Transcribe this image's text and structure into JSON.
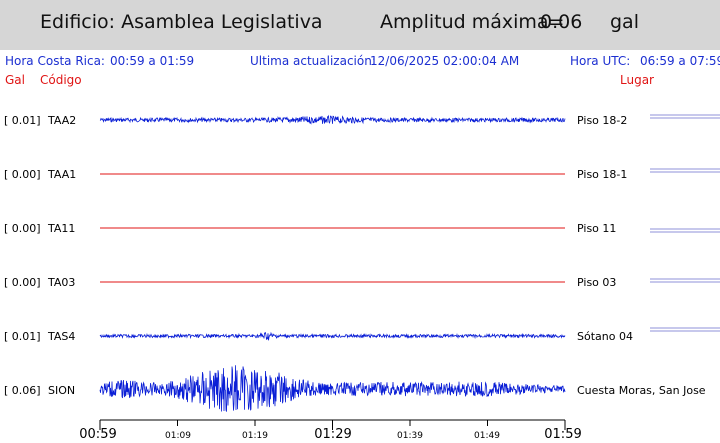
{
  "header": {
    "building": "Edificio: Asamblea Legislativa",
    "amp_label": "Amplitud máxima=",
    "amp_value": "0.06",
    "amp_unit": "gal"
  },
  "info": {
    "local_label": "Hora Costa Rica:",
    "local_range": "00:59 a 01:59",
    "update_label": "Ultima actualización:",
    "update_value": "12/06/2025 02:00:04 AM",
    "utc_label": "Hora UTC:",
    "utc_range": "06:59 a 07:59"
  },
  "columns": {
    "gal": "Gal",
    "code": "Código",
    "place": "Lugar"
  },
  "colors": {
    "header_bg": "#d6d6d6",
    "info_text": "#1c2fd1",
    "label_red": "#e01515",
    "trace_active": "#0b1fd6",
    "trace_flat": "#e01515"
  },
  "channels": [
    {
      "gal": "[   0.01]",
      "code": "TAA2",
      "place": "Piso 18-2",
      "amplitude": 0.01,
      "active": true
    },
    {
      "gal": "[   0.00]",
      "code": "TAA1",
      "place": "Piso 18-1",
      "amplitude": 0.0,
      "active": false
    },
    {
      "gal": "[   0.00]",
      "code": "TA11",
      "place": "Piso 11",
      "amplitude": 0.0,
      "active": false
    },
    {
      "gal": "[   0.00]",
      "code": "TA03",
      "place": "Piso 03",
      "amplitude": 0.0,
      "active": false
    },
    {
      "gal": "[   0.01]",
      "code": "TAS4",
      "place": "Sótano 04",
      "amplitude": 0.01,
      "active": true
    },
    {
      "gal": "[   0.06]",
      "code": "SION",
      "place": "Cuesta Moras, San Jose",
      "amplitude": 0.06,
      "active": true
    }
  ],
  "time_axis": {
    "major": [
      "00:59",
      "01:29",
      "01:59"
    ],
    "minor": [
      "01:09",
      "01:19",
      "01:39",
      "01:49"
    ]
  }
}
